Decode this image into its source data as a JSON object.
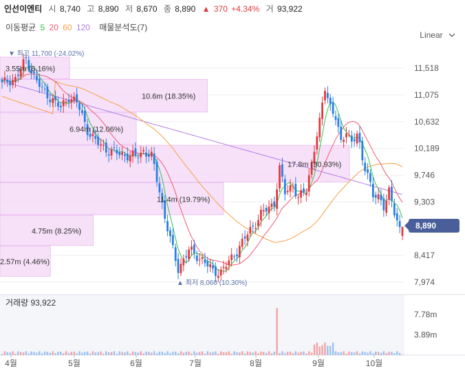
{
  "header": {
    "name": "인선이엔티",
    "open_label": "시",
    "open": "8,740",
    "high_label": "고",
    "high": "8,890",
    "low_label": "저",
    "low": "8,670",
    "close_label": "종",
    "close": "8,890",
    "change_arrow": "▲",
    "change": "370",
    "change_pct": "+4.34%",
    "volume_label": "거",
    "volume": "93,922"
  },
  "ma_bar": {
    "label": "이동평균",
    "ma5": "5",
    "ma20": "20",
    "ma60": "60",
    "ma120": "120",
    "profile_label": "매물분석도(7)"
  },
  "scale_select": {
    "value": "Linear",
    "icon": "chevron-down-icon"
  },
  "last_price": "8,890",
  "volume_pane": {
    "label": "거래량",
    "value": "93,922"
  },
  "chart_data": {
    "type": "candlestick",
    "price_ticks": [
      "11,518",
      "11,075",
      "10,632",
      "10,189",
      "9,746",
      "9,303",
      "8,417",
      "7,974"
    ],
    "price_tick_values": [
      11518,
      11075,
      10632,
      10189,
      9746,
      9303,
      8417,
      7974
    ],
    "volume_ticks": [
      "7.78m",
      "3.89m"
    ],
    "volume_tick_values": [
      7780000,
      3890000
    ],
    "x_labels": [
      "4월",
      "5월",
      "6월",
      "7월",
      "8월",
      "9월",
      "10월"
    ],
    "annotations": {
      "max": {
        "arrow": "▼",
        "label": "최고",
        "value": "11,700 (-24.02%)",
        "price": 11700
      },
      "min": {
        "arrow": "▲",
        "label": "최저",
        "value": "8,060 (10.30%)",
        "price": 8060
      }
    },
    "profile": [
      {
        "text": "3.55m (6.16%)",
        "lo": 11330,
        "hi": 11700
      },
      {
        "text": "10.6m (18.35%)",
        "lo": 10780,
        "hi": 11330
      },
      {
        "text": "6.94m (12.06%)",
        "lo": 10240,
        "hi": 10780
      },
      {
        "text": "17.8m (30.93%)",
        "lo": 9620,
        "hi": 10240
      },
      {
        "text": "11.4m (19.79%)",
        "lo": 9080,
        "hi": 9620
      },
      {
        "text": "4.75m (8.25%)",
        "lo": 8570,
        "hi": 9080
      },
      {
        "text": "2.57m (4.46%)",
        "lo": 8060,
        "hi": 8570
      }
    ],
    "colors": {
      "up": "#e0393e",
      "down": "#2a7ee0",
      "ma5": "#31c24b",
      "ma20": "#ef5a72",
      "ma60": "#f6a047",
      "ma120": "#b27be6",
      "profile": "#f5dcf7",
      "profile_border": "#e9b9ee",
      "grid": "#eeeeee",
      "volume_bg": "#f4f6fa"
    },
    "last_price": 8890
  }
}
